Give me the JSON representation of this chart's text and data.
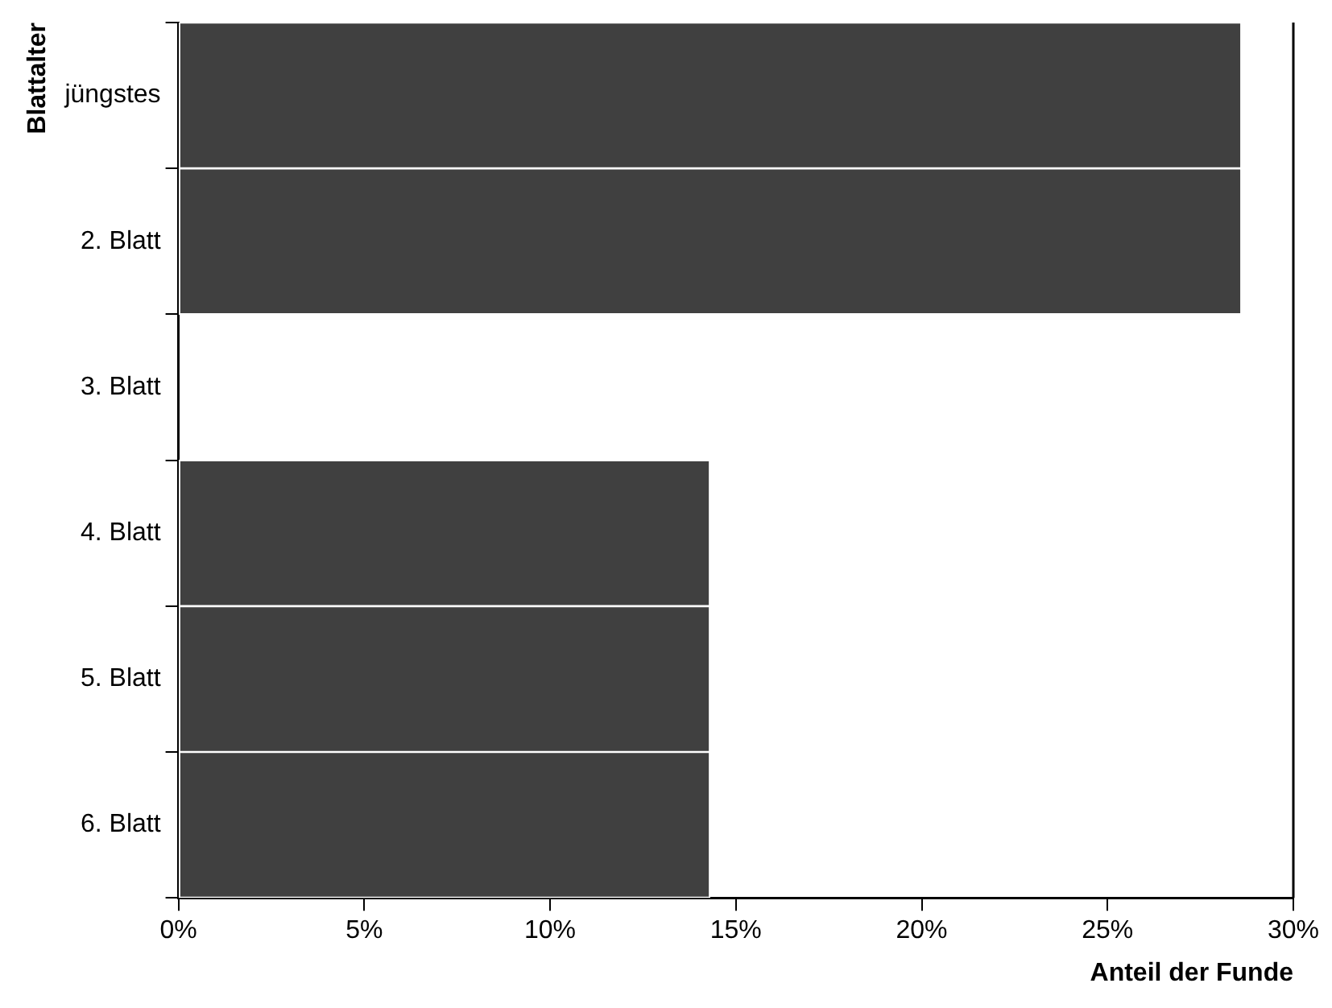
{
  "chart_data": {
    "type": "bar",
    "orientation": "horizontal",
    "xlabel": "Anteil der Funde",
    "ylabel": "Blattalter",
    "categories": [
      "jüngstes",
      "2. Blatt",
      "3. Blatt",
      "4. Blatt",
      "5. Blatt",
      "6. Blatt"
    ],
    "values": [
      28.6,
      28.6,
      0,
      14.3,
      14.3,
      14.3
    ],
    "color": "#404040",
    "xlim": [
      0,
      30
    ],
    "xticks": [
      {
        "value": 0,
        "label": "0%"
      },
      {
        "value": 5,
        "label": "5%"
      },
      {
        "value": 10,
        "label": "10%"
      },
      {
        "value": 15,
        "label": "15%"
      },
      {
        "value": 20,
        "label": "20%"
      },
      {
        "value": 25,
        "label": "25%"
      },
      {
        "value": 30,
        "label": "30%"
      }
    ],
    "grid": false,
    "legend": false
  }
}
